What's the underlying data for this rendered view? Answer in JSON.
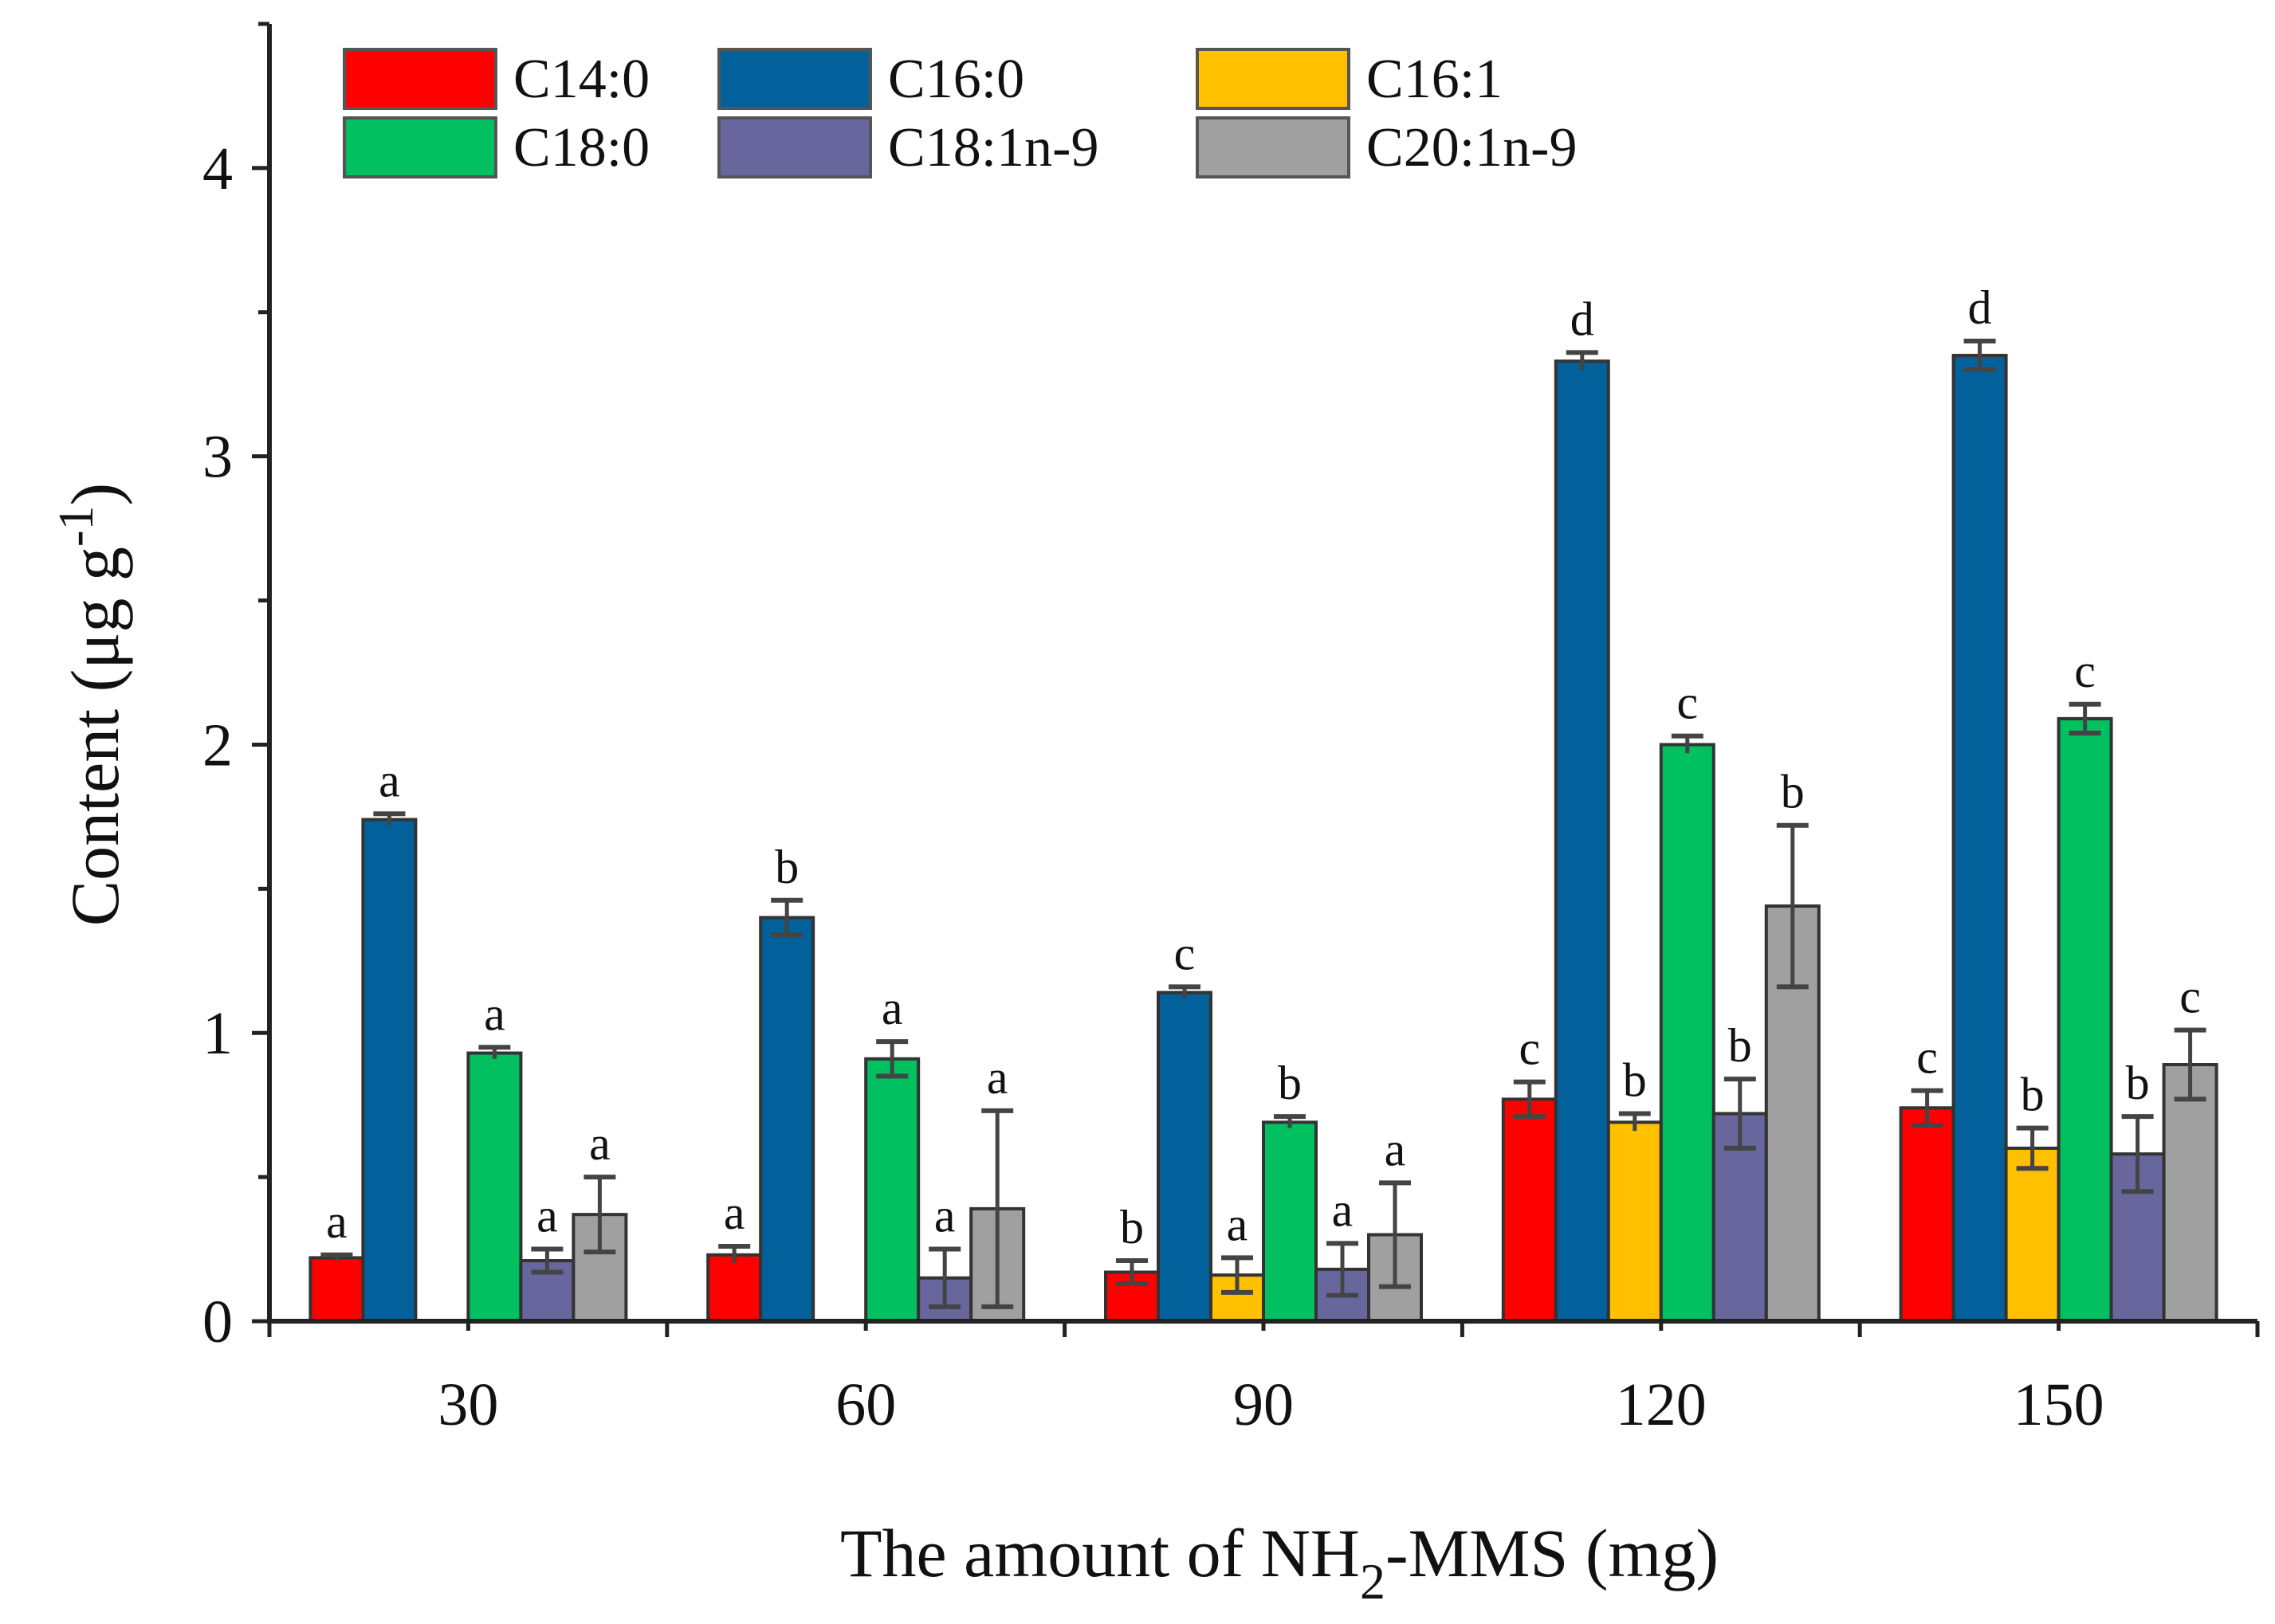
{
  "chart_data": {
    "type": "bar",
    "title": "",
    "xlabel": "The amount of NH2-MMS (mg)",
    "xlabel_parts": {
      "before": "The amount of NH",
      "sub": "2",
      "after": "-MMS (mg)"
    },
    "ylabel": "Content (μg g-1)",
    "ylabel_parts": {
      "main": "Content (μg g",
      "sup": "-1",
      "close": ")"
    },
    "ylim": [
      0,
      4.5
    ],
    "yticks": [
      "0",
      "1",
      "2",
      "3",
      "4"
    ],
    "categories": [
      "30",
      "60",
      "90",
      "120",
      "150"
    ],
    "legend_position": "top-left",
    "series": [
      {
        "name": "C14:0",
        "color": "#ff0000",
        "values": [
          0.22,
          0.23,
          0.17,
          0.77,
          0.74
        ],
        "errors": [
          0.01,
          0.03,
          0.04,
          0.06,
          0.06
        ],
        "labels": [
          "a",
          "a",
          "b",
          "c",
          "c"
        ]
      },
      {
        "name": "C16:0",
        "color": "#02609b",
        "values": [
          1.74,
          1.4,
          1.14,
          3.33,
          3.35
        ],
        "errors": [
          0.02,
          0.06,
          0.02,
          0.03,
          0.05
        ],
        "labels": [
          "a",
          "b",
          "c",
          "d",
          "d"
        ]
      },
      {
        "name": "C16:1",
        "color": "#ffc000",
        "values": [
          0,
          0,
          0.16,
          0.69,
          0.6
        ],
        "errors": [
          0,
          0,
          0.06,
          0.03,
          0.07
        ],
        "labels": [
          "",
          "",
          "a",
          "b",
          "b"
        ]
      },
      {
        "name": "C18:0",
        "color": "#00c060",
        "values": [
          0.93,
          0.91,
          0.69,
          2.0,
          2.09
        ],
        "errors": [
          0.02,
          0.06,
          0.02,
          0.03,
          0.05
        ],
        "labels": [
          "a",
          "a",
          "b",
          "c",
          "c"
        ]
      },
      {
        "name": "C18:1n-9",
        "color": "#68679d",
        "values": [
          0.21,
          0.15,
          0.18,
          0.72,
          0.58
        ],
        "errors": [
          0.04,
          0.1,
          0.09,
          0.12,
          0.13
        ],
        "labels": [
          "a",
          "a",
          "a",
          "b",
          "b"
        ]
      },
      {
        "name": "C20:1n-9",
        "color": "#a0a0a0",
        "values": [
          0.37,
          0.39,
          0.3,
          1.44,
          0.89
        ],
        "errors": [
          0.13,
          0.34,
          0.18,
          0.28,
          0.12
        ],
        "labels": [
          "a",
          "a",
          "a",
          "b",
          "c"
        ]
      }
    ]
  }
}
